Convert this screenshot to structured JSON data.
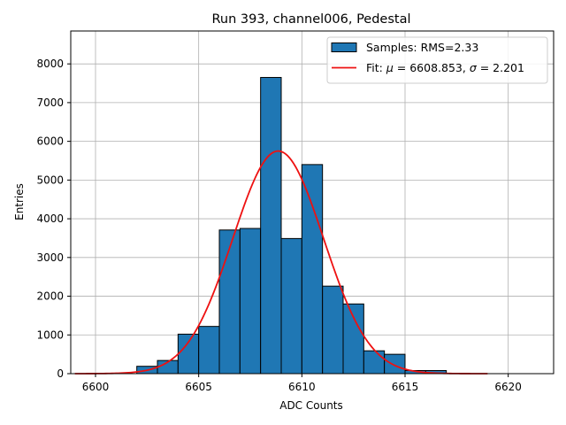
{
  "chart_data": {
    "type": "histogram",
    "title": "Run 393, channel006, Pedestal",
    "xlabel": "ADC Counts",
    "ylabel": "Entries",
    "xlim": [
      6598.8,
      6622.2
    ],
    "ylim": [
      0,
      8850
    ],
    "xticks": [
      6600,
      6605,
      6610,
      6615,
      6620
    ],
    "yticks": [
      0,
      1000,
      2000,
      3000,
      4000,
      5000,
      6000,
      7000,
      8000
    ],
    "grid": true,
    "legend_position": "top-right",
    "bar_color": "#1f77b4",
    "fit_color": "#ee1111",
    "bins": [
      {
        "x0": 6602,
        "x1": 6603,
        "count": 190
      },
      {
        "x0": 6603,
        "x1": 6604,
        "count": 340
      },
      {
        "x0": 6604,
        "x1": 6605,
        "count": 1020
      },
      {
        "x0": 6605,
        "x1": 6606,
        "count": 1220
      },
      {
        "x0": 6606,
        "x1": 6607,
        "count": 3710
      },
      {
        "x0": 6607,
        "x1": 6608,
        "count": 3750
      },
      {
        "x0": 6608,
        "x1": 6609,
        "count": 7650
      },
      {
        "x0": 6609,
        "x1": 6610,
        "count": 3490
      },
      {
        "x0": 6610,
        "x1": 6611,
        "count": 5400
      },
      {
        "x0": 6611,
        "x1": 6612,
        "count": 2260
      },
      {
        "x0": 6612,
        "x1": 6613,
        "count": 1800
      },
      {
        "x0": 6613,
        "x1": 6614,
        "count": 590
      },
      {
        "x0": 6614,
        "x1": 6615,
        "count": 500
      },
      {
        "x0": 6615,
        "x1": 6616,
        "count": 80
      },
      {
        "x0": 6616,
        "x1": 6617,
        "count": 80
      }
    ],
    "fit": {
      "mu": 6608.853,
      "sigma": 2.201,
      "amplitude": 5750,
      "x_range": [
        6599,
        6619
      ]
    },
    "legend": {
      "samples_label": "Samples: RMS=2.33",
      "fit_prefix": "Fit: ",
      "mu_symbol": "μ",
      "mu_text": " = 6608.853, ",
      "sigma_symbol": "σ",
      "sigma_text": " = 2.201"
    }
  }
}
